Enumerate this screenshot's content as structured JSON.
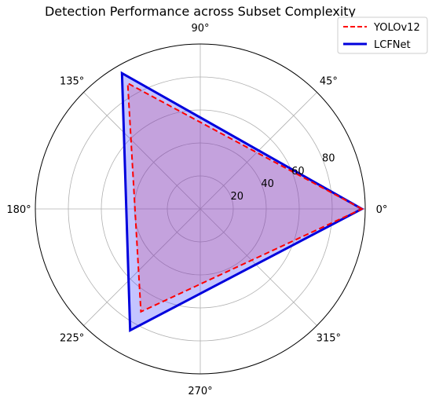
{
  "chart_data": {
    "type": "radar",
    "title": "Detection Performance across Subset Complexity",
    "angle_tick_labels": [
      "0°",
      "45°",
      "90°",
      "135°",
      "180°",
      "225°",
      "270°",
      "315°"
    ],
    "radial_ticks": [
      20,
      40,
      60,
      80
    ],
    "radial_tick_labels": [
      "20",
      "40",
      "60",
      "80"
    ],
    "rlim": [
      0,
      100
    ],
    "grid": true,
    "legend_position": "top-right",
    "categories": [
      "0°",
      "120°",
      "240°"
    ],
    "theta_deg": [
      0,
      120,
      240
    ],
    "series": [
      {
        "name": "YOLOv12",
        "values": [
          98,
          88,
          72
        ],
        "color": "#ff0000",
        "line_style": "dashed",
        "fill": "#ff3b3b",
        "fill_opacity": 0.25
      },
      {
        "name": "LCFNet",
        "values": [
          98,
          95,
          85
        ],
        "color": "#0000dd",
        "line_style": "solid",
        "fill": "#3a3aff",
        "fill_opacity": 0.3
      }
    ]
  }
}
